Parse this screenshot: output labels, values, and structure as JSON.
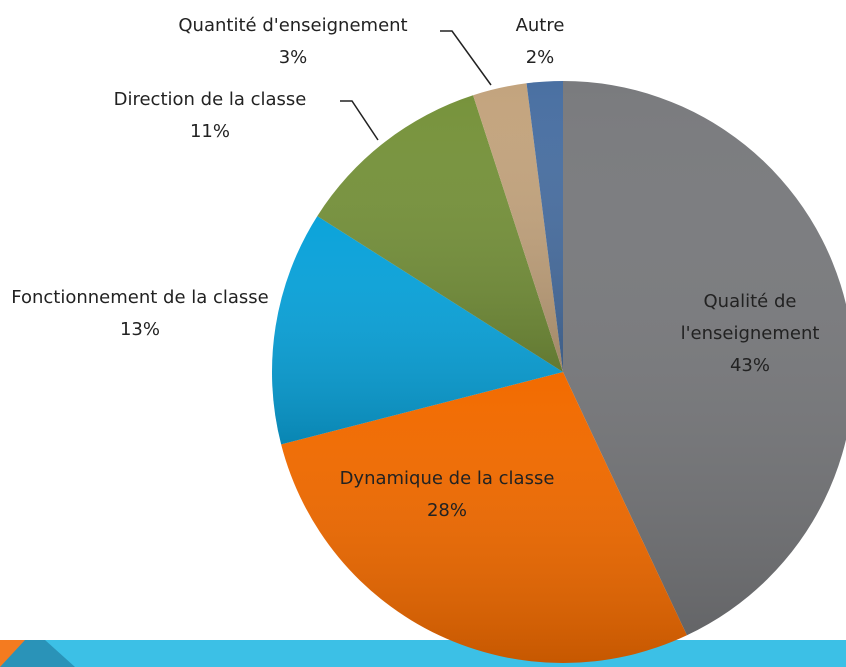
{
  "chart_data": {
    "type": "pie",
    "categories": [
      "Qualité de l'enseignement",
      "Dynamique de la classe",
      "Fonctionnement de la classe",
      "Direction de la classe",
      "Quantité d'enseignement",
      "Autre"
    ],
    "values": [
      43,
      28,
      13,
      11,
      3,
      2
    ],
    "value_labels": [
      "43%",
      "28%",
      "13%",
      "11%",
      "3%",
      "2%"
    ],
    "colors": [
      "#7a7b7e",
      "#f26b00",
      "#0ba3da",
      "#77933c",
      "#c3a47e",
      "#4a70a2"
    ]
  }
}
